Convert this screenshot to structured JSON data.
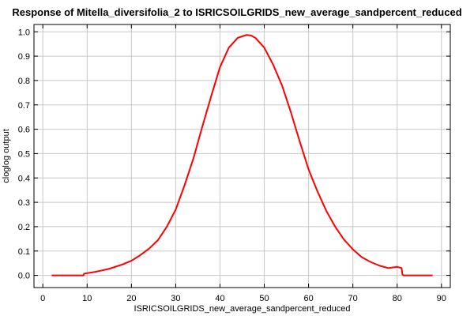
{
  "chart_data": {
    "type": "line",
    "title": "Response of Mitella_diversifolia_2 to ISRICSOILGRIDS_new_average_sandpercent_reduced",
    "xlabel": "ISRICSOILGRIDS_new_average_sandpercent_reduced",
    "ylabel": "cloglog output",
    "xlim": [
      -2,
      92
    ],
    "ylim": [
      -0.05,
      1.03
    ],
    "xticks": [
      0,
      10,
      20,
      30,
      40,
      50,
      60,
      70,
      80,
      90
    ],
    "yticks": [
      0.0,
      0.1,
      0.2,
      0.3,
      0.4,
      0.5,
      0.6,
      0.7,
      0.8,
      0.9,
      1.0
    ],
    "ytick_labels": [
      "0.0",
      "0.1",
      "0.2",
      "0.3",
      "0.4",
      "0.5",
      "0.6",
      "0.7",
      "0.8",
      "0.9",
      "1.0"
    ],
    "grid": true,
    "series": [
      {
        "name": "response",
        "color": "#ff0000",
        "x": [
          2,
          9.2,
          9.3,
          12,
          15,
          18,
          20,
          22,
          24,
          26,
          28,
          30,
          32,
          34,
          36,
          38,
          40,
          42,
          44,
          46,
          47,
          48,
          50,
          52,
          54,
          56,
          58,
          60,
          62,
          64,
          66,
          68,
          70,
          72,
          74,
          76,
          78,
          80,
          81,
          81.2,
          81.5,
          88
        ],
        "y": [
          0.0,
          0.0,
          0.007,
          0.015,
          0.027,
          0.045,
          0.06,
          0.083,
          0.11,
          0.145,
          0.2,
          0.27,
          0.37,
          0.48,
          0.61,
          0.735,
          0.855,
          0.935,
          0.975,
          0.987,
          0.985,
          0.975,
          0.935,
          0.865,
          0.78,
          0.67,
          0.55,
          0.435,
          0.345,
          0.265,
          0.2,
          0.147,
          0.107,
          0.075,
          0.055,
          0.04,
          0.03,
          0.035,
          0.03,
          0.003,
          0.0,
          0.0
        ]
      }
    ]
  }
}
